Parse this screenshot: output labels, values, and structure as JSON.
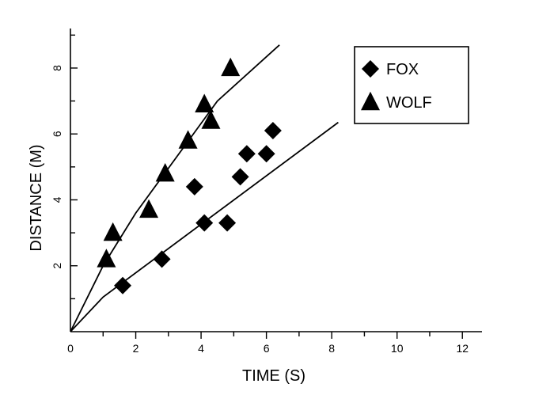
{
  "chart_data": {
    "type": "scatter",
    "xlabel": "TIME (S)",
    "ylabel": "DISTANCE (M)",
    "xlim": [
      0,
      12.6
    ],
    "ylim": [
      0,
      9.2
    ],
    "xticks": [
      0,
      2,
      4,
      6,
      8,
      10,
      12
    ],
    "xtick_labels": [
      "0",
      "2",
      "4",
      "6",
      "8",
      "10",
      "12"
    ],
    "yticks": [
      2,
      4,
      6,
      8
    ],
    "ytick_labels": [
      "2",
      "4",
      "6",
      "8"
    ],
    "legend_position": "top-right",
    "grid": false,
    "series": [
      {
        "name": "FOX",
        "marker": "diamond",
        "color": "#000000",
        "points": [
          {
            "x": 1.6,
            "y": 1.4
          },
          {
            "x": 2.8,
            "y": 2.2
          },
          {
            "x": 3.8,
            "y": 4.4
          },
          {
            "x": 4.1,
            "y": 3.3
          },
          {
            "x": 4.8,
            "y": 3.3
          },
          {
            "x": 5.2,
            "y": 4.7
          },
          {
            "x": 5.4,
            "y": 5.4
          },
          {
            "x": 6.0,
            "y": 5.4
          },
          {
            "x": 6.2,
            "y": 6.1
          }
        ],
        "fit_line": [
          [
            0,
            0
          ],
          [
            1,
            1.05
          ],
          [
            8.2,
            6.35
          ]
        ]
      },
      {
        "name": "WOLF",
        "marker": "triangle",
        "color": "#000000",
        "points": [
          {
            "x": 1.1,
            "y": 2.2
          },
          {
            "x": 1.3,
            "y": 3.0
          },
          {
            "x": 2.4,
            "y": 3.7
          },
          {
            "x": 2.9,
            "y": 4.8
          },
          {
            "x": 3.6,
            "y": 5.8
          },
          {
            "x": 4.1,
            "y": 6.9
          },
          {
            "x": 4.3,
            "y": 6.4
          },
          {
            "x": 4.9,
            "y": 8.0
          }
        ],
        "fit_line": [
          [
            0,
            0
          ],
          [
            1,
            2.0
          ],
          [
            2,
            3.6
          ],
          [
            4.5,
            7.0
          ],
          [
            6.4,
            8.7
          ]
        ]
      }
    ]
  }
}
